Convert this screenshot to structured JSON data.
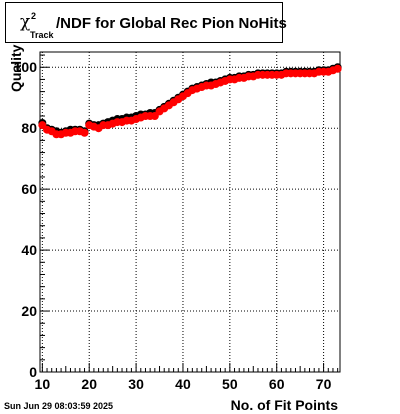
{
  "title": {
    "symbol": "χ",
    "superscript": "2",
    "subscript": "Track",
    "text": "/NDF for Global Rec Pion NoHits"
  },
  "footer": {
    "timestamp": "Sun Jun 29 08:03:59 2025"
  },
  "chart_data": {
    "type": "scatter",
    "title": "χ²_Track/NDF for Global Rec Pion NoHits",
    "xlabel": "No. of Fit Points",
    "ylabel": "Quality",
    "xlim": [
      9.5,
      73.5
    ],
    "ylim": [
      0,
      105
    ],
    "grid": true,
    "x_ticks": [
      "10",
      "20",
      "30",
      "40",
      "50",
      "60",
      "70"
    ],
    "y_ticks": [
      "0",
      "20",
      "40",
      "60",
      "80",
      "100"
    ],
    "x_tick_values": [
      10,
      20,
      30,
      40,
      50,
      60,
      70
    ],
    "y_tick_values": [
      0,
      20,
      40,
      60,
      80,
      100
    ],
    "colors": {
      "series_1": "#000000",
      "series_2": "#ff0000"
    },
    "series": [
      {
        "color": "#000000",
        "x": [
          10,
          11,
          12,
          13,
          14,
          15,
          16,
          17,
          18,
          19,
          20,
          21,
          22,
          23,
          24,
          25,
          26,
          27,
          28,
          29,
          30,
          31,
          32,
          33,
          34,
          35,
          36,
          37,
          38,
          39,
          40,
          41,
          42,
          43,
          44,
          45,
          46,
          47,
          48,
          49,
          50,
          51,
          52,
          53,
          54,
          55,
          56,
          57,
          58,
          59,
          60,
          61,
          62,
          63,
          64,
          65,
          66,
          67,
          68,
          69,
          70,
          71,
          72,
          73
        ],
        "y": [
          81.7,
          80.0,
          79.5,
          79.0,
          78.5,
          79.0,
          79.5,
          79.5,
          79.5,
          79.0,
          81.5,
          81.0,
          81.0,
          81.5,
          82.0,
          82.5,
          83.0,
          83.0,
          83.5,
          83.5,
          84.0,
          84.5,
          84.5,
          85.0,
          85.0,
          86.0,
          87.0,
          88.0,
          89.0,
          90.0,
          91.0,
          92.0,
          93.0,
          93.5,
          94.0,
          94.5,
          95.0,
          95.0,
          95.5,
          96.0,
          96.5,
          96.5,
          97.0,
          97.0,
          97.5,
          97.5,
          98.0,
          98.0,
          98.0,
          98.0,
          98.0,
          98.0,
          98.5,
          98.5,
          98.5,
          98.5,
          98.5,
          98.5,
          98.5,
          99.0,
          99.0,
          99.0,
          99.5,
          100.0
        ]
      },
      {
        "color": "#ff0000",
        "x": [
          10,
          11,
          12,
          13,
          14,
          15,
          16,
          17,
          18,
          19,
          20,
          21,
          22,
          23,
          24,
          25,
          26,
          27,
          28,
          29,
          30,
          31,
          32,
          33,
          34,
          35,
          36,
          37,
          38,
          39,
          40,
          41,
          42,
          43,
          44,
          45,
          46,
          47,
          48,
          49,
          50,
          51,
          52,
          53,
          54,
          55,
          56,
          57,
          58,
          59,
          60,
          61,
          62,
          63,
          64,
          65,
          66,
          67,
          68,
          69,
          70,
          71,
          72,
          73
        ],
        "y": [
          81.0,
          79.5,
          79.0,
          78.0,
          78.0,
          78.5,
          78.5,
          79.0,
          79.0,
          78.5,
          81.0,
          80.5,
          80.0,
          81.0,
          81.0,
          81.5,
          82.0,
          82.0,
          82.5,
          82.5,
          83.0,
          83.5,
          84.0,
          84.0,
          84.0,
          85.5,
          86.5,
          87.5,
          88.5,
          89.5,
          90.5,
          91.5,
          92.5,
          93.0,
          93.5,
          94.0,
          94.0,
          94.5,
          95.0,
          95.5,
          96.0,
          96.0,
          96.5,
          96.5,
          97.0,
          97.0,
          97.5,
          97.5,
          97.5,
          97.5,
          97.5,
          97.5,
          98.0,
          98.0,
          98.0,
          98.0,
          98.0,
          98.0,
          98.0,
          98.5,
          98.5,
          98.5,
          99.0,
          99.5
        ]
      }
    ]
  }
}
